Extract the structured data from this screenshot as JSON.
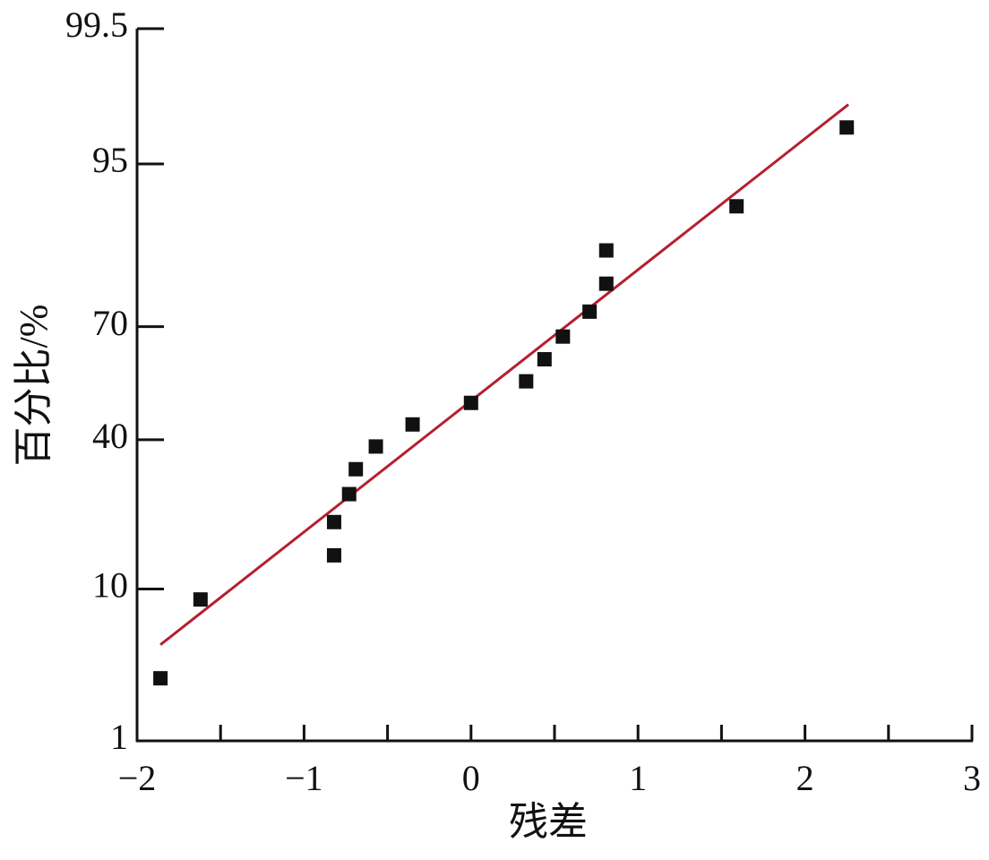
{
  "chart_data": {
    "type": "scatter",
    "xlabel": "残差",
    "ylabel": "百分比/%",
    "yscale": "normal-probability",
    "x": [
      -1.86,
      -1.62,
      -0.82,
      -0.82,
      -0.73,
      -0.69,
      -0.57,
      -0.35,
      0,
      0.33,
      0.44,
      0.55,
      0.71,
      0.81,
      0.81,
      1.59,
      2.25
    ],
    "values": [
      2.9,
      8.8,
      14.7,
      20.6,
      26.5,
      32.4,
      38.2,
      44.1,
      50,
      55.9,
      61.8,
      67.6,
      73.5,
      79.4,
      85.3,
      91.2,
      97.1
    ],
    "color": "#111111",
    "fit_line": {
      "x": [
        -1.86,
        2.26
      ],
      "values": [
        4.8,
        98.0
      ],
      "color": "#b5202e"
    },
    "xlim": [
      -2,
      3
    ],
    "xticks": [
      {
        "value": -2,
        "label": "−2"
      },
      {
        "value": -1,
        "label": "−1"
      },
      0,
      1,
      2,
      3
    ],
    "xminorticks": [
      -1.5,
      -0.5,
      0.5,
      1.5,
      2.5
    ],
    "ylim": [
      1,
      99.5
    ],
    "yticks": [
      1,
      10,
      40,
      70,
      95,
      99.5
    ]
  }
}
